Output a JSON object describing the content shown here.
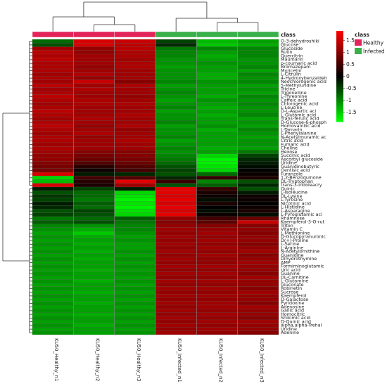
{
  "chart_data": {
    "type": "heatmap",
    "class_header": "class",
    "class_legend": [
      {
        "label": "Healthy",
        "color": "#e3245a"
      },
      {
        "label": "Infected",
        "color": "#3ab04b"
      }
    ],
    "columns": [
      {
        "label": "KU50_Healthy_n1",
        "class": "Healthy"
      },
      {
        "label": "KU50_Healthy_n2",
        "class": "Healthy"
      },
      {
        "label": "KU50_Healthy_n3",
        "class": "Healthy"
      },
      {
        "label": "KU50_Infected_n1",
        "class": "Infected"
      },
      {
        "label": "KU50_Infected_n2",
        "class": "Infected"
      },
      {
        "label": "KU50_Infected_n3",
        "class": "Infected"
      }
    ],
    "color_scale": {
      "ticks": [
        "1.5",
        "1",
        "0.5",
        "0",
        "-0.5",
        "-1",
        "-1.5"
      ],
      "tick_values": [
        1.5,
        1,
        0.5,
        0,
        -0.5,
        -1,
        -1.5
      ],
      "range": [
        -1.9,
        1.9
      ],
      "high_color": "#ff0000",
      "mid_color": "#000000",
      "low_color": "#00ff00"
    },
    "rows": [
      "O-3-dehydroshiki",
      "Glucose",
      "Glucoside",
      "Rutin",
      "Quercitrin",
      "Maumarin",
      "p-coumaric acid",
      "Bromazepam",
      "Myricetin",
      "L-Citrulin",
      "4-Hydroxybenzaldeh",
      "Neochlorogenic acid",
      "5-Methyluridine",
      "Tricine",
      "Trigonelline",
      "L-Threonine",
      "Caffeic acid",
      "Chlorogenic acid",
      "L-Leucine",
      "D-L-Aspartic aci",
      "L-Glutamic acid",
      "Trans-ferulic acid",
      "D-Glucose-6-phosph",
      "Homovanillic acid",
      "L-Tamarin",
      "L-Phenylalanine",
      "N-Acetylmuramic ac",
      "Citric acid",
      "Fumaric acid",
      "Choline",
      "Hexose",
      "Succinic acid",
      "Ascorbyl glucoside",
      "Uridine",
      "Guanidinobutyric",
      "Gentisic acid",
      "Furanzole",
      "1,2-Benzoquinone",
      "DL-Tryptophan",
      "trans-3-Indoleacry",
      "Quinic",
      "L-Isoleucine",
      "DL-Lysine",
      "L-Tyrosine",
      "Nicotinic acid",
      "L-Histidine",
      "L-Asparagine",
      "L-Pyroglutamic aci",
      "Rhamnose",
      "Kaempferol-3-O-rut",
      "Triton",
      "Vitamin C",
      "L-Methionine",
      "D-Glucopyranuronic",
      "D(+)-Proline",
      "L-Serine",
      "L-Arginine",
      "N-Acetylornithine",
      "Guanidine",
      "Dihydrothymine",
      "AMP",
      "Formiminoglutamic",
      "Uric acid",
      "Guanine",
      "DL-Carnitine",
      "L-Glutamine",
      "Gluconate",
      "Robinetin",
      "Sucrose",
      "Kaempferol",
      "D-Galactose",
      "Pyridoxine",
      "Adenosine",
      "Gallic acid",
      "Homocitric",
      "Shikimic acid",
      "D-Quinic acid",
      "alpha,alpha-Trehal",
      "Uridine",
      "Adenine"
    ],
    "values": [
      [
        -0.8,
        1.6,
        1.5,
        -0.5,
        -1.4,
        -1.2
      ],
      [
        -0.6,
        1.6,
        1.4,
        -0.3,
        -1.5,
        -1.3
      ],
      [
        1.2,
        1.1,
        1.4,
        -0.9,
        -1.0,
        -1.0
      ],
      [
        1.4,
        1.1,
        1.3,
        -1.0,
        -1.2,
        -1.0
      ],
      [
        1.3,
        1.2,
        1.3,
        -1.0,
        -1.3,
        -1.0
      ],
      [
        1.4,
        1.2,
        1.2,
        -1.1,
        -1.2,
        -1.1
      ],
      [
        1.3,
        1.2,
        1.3,
        -1.1,
        -1.1,
        -1.1
      ],
      [
        1.3,
        1.1,
        1.3,
        -1.2,
        -1.2,
        -1.0
      ],
      [
        1.3,
        1.2,
        1.2,
        -1.1,
        -1.2,
        -1.2
      ],
      [
        1.2,
        1.3,
        1.2,
        -1.1,
        -1.3,
        -1.0
      ],
      [
        1.3,
        1.1,
        1.2,
        -1.1,
        -1.3,
        -1.1
      ],
      [
        1.2,
        1.5,
        1.0,
        -1.0,
        -1.1,
        -1.0
      ],
      [
        1.4,
        1.2,
        1.3,
        -1.2,
        -1.2,
        -1.2
      ],
      [
        1.2,
        1.3,
        1.2,
        -1.1,
        -1.2,
        -1.1
      ],
      [
        1.3,
        1.2,
        1.2,
        -1.0,
        -1.2,
        -1.2
      ],
      [
        1.4,
        1.2,
        1.1,
        -1.1,
        -1.3,
        -1.0
      ],
      [
        1.3,
        1.3,
        1.2,
        -1.2,
        -1.1,
        -1.1
      ],
      [
        1.2,
        1.3,
        1.3,
        -1.1,
        -1.2,
        -1.0
      ],
      [
        1.3,
        1.2,
        1.2,
        -1.0,
        -1.3,
        -1.1
      ],
      [
        1.4,
        1.2,
        1.2,
        -1.2,
        -1.2,
        -1.1
      ],
      [
        1.3,
        1.2,
        1.3,
        -1.1,
        -1.3,
        -1.0
      ],
      [
        1.2,
        1.3,
        1.2,
        -1.1,
        -1.2,
        -1.2
      ],
      [
        1.3,
        1.2,
        1.2,
        -1.0,
        -1.2,
        -1.1
      ],
      [
        1.4,
        1.1,
        1.3,
        -1.2,
        -1.1,
        -1.2
      ],
      [
        1.3,
        1.2,
        1.1,
        -1.1,
        -1.3,
        -1.0
      ],
      [
        1.2,
        1.3,
        1.2,
        -1.1,
        -1.2,
        -1.1
      ],
      [
        1.3,
        1.1,
        1.2,
        -1.0,
        -1.2,
        -1.2
      ],
      [
        1.3,
        1.2,
        1.3,
        -1.2,
        -1.2,
        -1.1
      ],
      [
        1.2,
        1.2,
        1.2,
        -1.1,
        -1.2,
        -1.1
      ],
      [
        1.3,
        1.2,
        1.2,
        -1.0,
        -1.3,
        -1.2
      ],
      [
        1.2,
        1.0,
        1.0,
        -1.1,
        -1.2,
        -0.9
      ],
      [
        1.1,
        0.9,
        1.0,
        -1.0,
        -1.6,
        -0.5
      ],
      [
        1.1,
        0.8,
        0.9,
        -0.9,
        -1.8,
        -0.3
      ],
      [
        1.0,
        0.6,
        0.8,
        -0.8,
        -1.8,
        -0.2
      ],
      [
        0.9,
        0.3,
        0.6,
        -0.6,
        -1.7,
        -0.1
      ],
      [
        0.9,
        0.1,
        0.5,
        -0.5,
        -1.6,
        0.0
      ],
      [
        1.6,
        -0.2,
        -0.3,
        -0.6,
        -0.8,
        0.1
      ],
      [
        -1.6,
        0.5,
        0.6,
        -0.3,
        0.4,
        0.2
      ],
      [
        -1.4,
        0.3,
        1.7,
        0.4,
        -1.0,
        -0.6
      ],
      [
        1.6,
        0.2,
        1.2,
        -0.6,
        -0.7,
        -0.3
      ],
      [
        -0.2,
        -0.5,
        -0.2,
        1.7,
        0.4,
        -0.6
      ],
      [
        -0.6,
        -0.8,
        -1.6,
        1.7,
        0.2,
        -0.2
      ],
      [
        -0.4,
        -0.8,
        -1.7,
        1.6,
        0.1,
        0.1
      ],
      [
        -0.5,
        -0.9,
        -1.8,
        1.7,
        -0.1,
        0.1
      ],
      [
        -0.2,
        -0.7,
        -1.7,
        1.6,
        0.2,
        0.0
      ],
      [
        -0.3,
        -0.8,
        -1.8,
        1.7,
        0.0,
        0.1
      ],
      [
        -0.6,
        -0.5,
        -1.7,
        1.6,
        -0.1,
        0.2
      ],
      [
        -0.5,
        -0.6,
        -1.6,
        1.7,
        0.1,
        -0.1
      ],
      [
        -0.9,
        -0.8,
        -0.7,
        1.1,
        0.5,
        0.8
      ],
      [
        -0.7,
        -0.6,
        -0.9,
        1.0,
        0.7,
        1.5
      ],
      [
        -1.0,
        -1.1,
        -1.0,
        1.1,
        1.0,
        1.0
      ],
      [
        -1.1,
        -1.3,
        -1.0,
        1.2,
        1.1,
        1.1
      ],
      [
        -1.2,
        -1.5,
        -1.1,
        1.1,
        1.2,
        1.0
      ],
      [
        -1.1,
        -1.3,
        -1.2,
        1.2,
        1.1,
        1.1
      ],
      [
        -1.2,
        -1.2,
        -1.1,
        1.1,
        1.2,
        1.1
      ],
      [
        -1.1,
        -1.3,
        -1.2,
        1.2,
        1.1,
        1.0
      ],
      [
        -1.2,
        -1.2,
        -1.2,
        1.1,
        1.2,
        1.1
      ],
      [
        -1.1,
        -1.3,
        -1.1,
        1.2,
        1.1,
        1.2
      ],
      [
        -1.2,
        -1.2,
        -1.2,
        1.1,
        1.2,
        1.0
      ],
      [
        -1.1,
        -1.3,
        -1.1,
        1.2,
        1.1,
        1.1
      ],
      [
        -1.2,
        -1.2,
        -1.2,
        1.1,
        1.1,
        1.2
      ],
      [
        -1.1,
        -1.2,
        -1.1,
        1.2,
        1.2,
        1.1
      ],
      [
        -1.2,
        -1.3,
        -1.2,
        1.1,
        1.1,
        1.1
      ],
      [
        -1.1,
        -1.2,
        -1.1,
        1.2,
        1.2,
        1.0
      ],
      [
        -1.2,
        -1.2,
        -1.2,
        1.1,
        1.1,
        1.2
      ],
      [
        -1.1,
        -1.3,
        -1.1,
        1.2,
        1.2,
        1.1
      ],
      [
        -1.2,
        -1.2,
        -1.2,
        1.1,
        1.1,
        1.1
      ],
      [
        -1.1,
        -1.2,
        -1.1,
        1.2,
        1.2,
        1.0
      ],
      [
        -1.2,
        -1.3,
        -1.2,
        1.1,
        1.1,
        1.2
      ],
      [
        -1.1,
        -1.2,
        -1.1,
        1.2,
        1.2,
        1.1
      ],
      [
        -1.2,
        -1.2,
        -1.2,
        1.1,
        1.1,
        1.1
      ],
      [
        -1.1,
        -1.3,
        -1.1,
        1.2,
        1.2,
        1.0
      ],
      [
        -1.2,
        -1.2,
        -1.2,
        1.1,
        1.2,
        1.2
      ],
      [
        -1.1,
        -1.2,
        -1.1,
        1.2,
        1.1,
        1.1
      ],
      [
        -1.2,
        -1.3,
        -1.2,
        1.1,
        1.2,
        1.1
      ],
      [
        -1.1,
        -1.2,
        -1.1,
        1.2,
        1.1,
        1.0
      ],
      [
        -1.2,
        -1.2,
        -1.2,
        1.1,
        1.2,
        1.2
      ],
      [
        -1.1,
        -1.3,
        -1.1,
        1.2,
        1.1,
        1.1
      ],
      [
        -1.2,
        -1.2,
        -1.2,
        1.1,
        1.2,
        1.1
      ],
      [
        -1.1,
        -1.2,
        -1.1,
        1.2,
        1.1,
        1.0
      ]
    ]
  }
}
